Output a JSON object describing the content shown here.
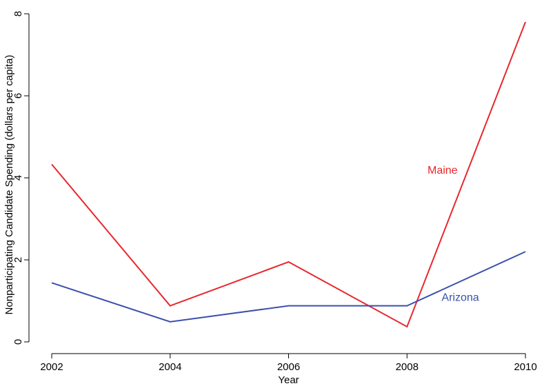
{
  "chart_data": {
    "type": "line",
    "xlabel": "Year",
    "ylabel": "Nonparticipating Candidate Spending (dollars per capita)",
    "x": [
      2002,
      2004,
      2006,
      2008,
      2010
    ],
    "xlim": [
      2002,
      2010
    ],
    "ylim": [
      0,
      8
    ],
    "xticks": [
      2002,
      2004,
      2006,
      2008,
      2010
    ],
    "yticks": [
      0,
      2,
      4,
      6,
      8
    ],
    "grid": false,
    "legend": "none",
    "series": [
      {
        "name": "Maine",
        "color": "#e8262c",
        "values": [
          4.33,
          0.88,
          1.95,
          0.37,
          7.8
        ],
        "label_at": {
          "x": 2008.6,
          "y": 4.1
        }
      },
      {
        "name": "Arizona",
        "color": "#3a4fae",
        "values": [
          1.44,
          0.49,
          0.88,
          0.88,
          2.2
        ],
        "label_at": {
          "x": 2008.9,
          "y": 1.0
        }
      }
    ]
  }
}
